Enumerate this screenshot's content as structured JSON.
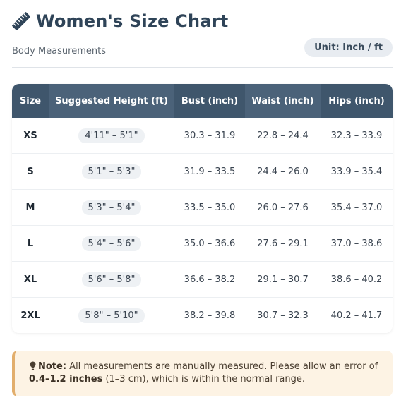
{
  "header": {
    "title": "Women's Size Chart",
    "subtitle": "Body Measurements",
    "unit_badge": "Unit: Inch / ft",
    "icon": "ruler-icon"
  },
  "table": {
    "columns": [
      "Size",
      "Suggested Height (ft)",
      "Bust (inch)",
      "Waist (inch)",
      "Hips (inch)"
    ],
    "rows": [
      {
        "size": "XS",
        "height": "4'11\" – 5'1\"",
        "bust": "30.3 – 31.9",
        "waist": "22.8 – 24.4",
        "hips": "32.3 – 33.9"
      },
      {
        "size": "S",
        "height": "5'1\" – 5'3\"",
        "bust": "31.9 – 33.5",
        "waist": "24.4 – 26.0",
        "hips": "33.9 – 35.4"
      },
      {
        "size": "M",
        "height": "5'3\" – 5'4\"",
        "bust": "33.5 – 35.0",
        "waist": "26.0 – 27.6",
        "hips": "35.4 – 37.0"
      },
      {
        "size": "L",
        "height": "5'4\" – 5'6\"",
        "bust": "35.0 – 36.6",
        "waist": "27.6 – 29.1",
        "hips": "37.0 – 38.6"
      },
      {
        "size": "XL",
        "height": "5'6\" – 5'8\"",
        "bust": "36.6 – 38.2",
        "waist": "29.1 – 30.7",
        "hips": "38.6 – 40.2"
      },
      {
        "size": "2XL",
        "height": "5'8\" – 5'10\"",
        "bust": "38.2 – 39.8",
        "waist": "30.7 – 32.3",
        "hips": "40.2 – 41.7"
      }
    ]
  },
  "note": {
    "icon": "lightbulb-icon",
    "label": "Note:",
    "text_before": " All measurements are manually measured. Please allow an error of ",
    "error_range": "0.4–1.2 inches",
    "text_after": " (1–3 cm), which is within the normal range."
  },
  "colors": {
    "header_bg": "#3f566c",
    "header_alt_bg": "#4b6279",
    "note_bg": "#fdf3e4",
    "note_border": "#e2ae6c"
  }
}
